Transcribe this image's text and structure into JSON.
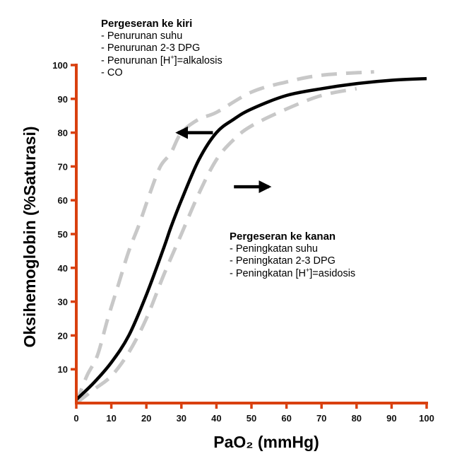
{
  "chart_data": {
    "type": "line",
    "title": "",
    "xlabel": "PaO₂ (mmHg)",
    "ylabel": "Oksihemoglobin (%Saturasi)",
    "xlim": [
      0,
      100
    ],
    "ylim": [
      0,
      100
    ],
    "x_ticks": [
      "0",
      "10",
      "20",
      "30",
      "40",
      "50",
      "60",
      "70",
      "80",
      "90",
      "100"
    ],
    "y_ticks": [
      "10",
      "20",
      "30",
      "40",
      "50",
      "60",
      "70",
      "80",
      "90",
      "100"
    ],
    "grid": false,
    "colors": {
      "axis": "#d9400f",
      "normal_curve": "#000000",
      "shifted_curve": "#c8c8c8",
      "arrow": "#000000"
    },
    "series": [
      {
        "style": "solid",
        "x": [
          0,
          5,
          10,
          15,
          20,
          25,
          27,
          30,
          35,
          40,
          45,
          50,
          60,
          70,
          80,
          90,
          100
        ],
        "y": [
          1,
          6,
          12,
          20,
          32,
          46,
          52,
          60,
          72,
          80,
          84,
          87,
          91,
          93,
          94.5,
          95.5,
          96
        ]
      },
      {
        "style": "dashed",
        "x": [
          0,
          3,
          6,
          9,
          12,
          15,
          18,
          21,
          24,
          27,
          30,
          35,
          40,
          50,
          60,
          70,
          85
        ],
        "y": [
          0,
          8,
          14,
          25,
          35,
          45,
          53,
          62,
          70,
          74,
          80,
          84,
          86,
          92,
          95,
          97,
          98
        ]
      },
      {
        "style": "dashed",
        "x": [
          0,
          5,
          10,
          15,
          20,
          25,
          30,
          35,
          40,
          45,
          50,
          60,
          70,
          80
        ],
        "y": [
          0,
          4,
          8,
          15,
          25,
          38,
          50,
          62,
          72,
          78,
          82,
          87,
          91,
          93
        ]
      }
    ],
    "arrows": [
      {
        "direction": "left",
        "from_x": 39,
        "to_x": 29,
        "y": 80
      },
      {
        "direction": "right",
        "from_x": 45,
        "to_x": 55,
        "y": 64
      }
    ]
  },
  "annotations": {
    "left": {
      "heading": "Pergeseran ke kiri",
      "items": [
        "- Penurunan suhu",
        "- Penurunan 2-3 DPG",
        "- Penurunan [H",
        "]=alkalosis",
        "- CO"
      ],
      "superscript": "+"
    },
    "right": {
      "heading": "Pergeseran ke kanan",
      "items": [
        "- Peningkatan suhu",
        "- Peningkatan 2-3 DPG",
        "- Peningkatan [H",
        "]=asidosis"
      ],
      "superscript": "+"
    }
  }
}
